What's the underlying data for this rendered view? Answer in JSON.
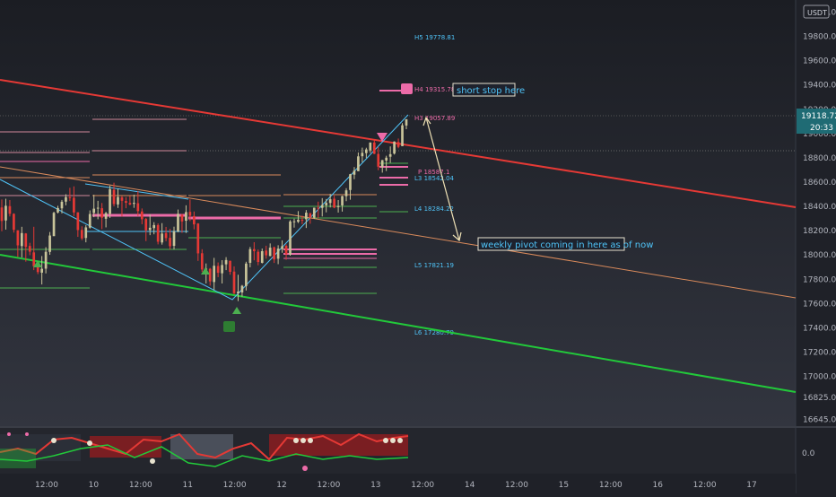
{
  "chart_data": {
    "type": "candlestick",
    "symbol_currency": "USDT",
    "last_price": "19118.72",
    "countdown": "20:33",
    "y_ticks": [
      "20000.00",
      "19800.00",
      "19600.00",
      "19400.00",
      "19200.00",
      "19000.00",
      "18800.00",
      "18600.00",
      "18400.00",
      "18200.00",
      "18000.00",
      "17800.00",
      "17600.00",
      "17400.00",
      "17200.00",
      "17000.00",
      "16825.00",
      "16645.00"
    ],
    "y_range": [
      16590,
      20100
    ],
    "x_ticks": [
      "12:00",
      "10",
      "12:00",
      "11",
      "12:00",
      "12",
      "12:00",
      "13",
      "12:00",
      "14",
      "12:00",
      "15",
      "12:00",
      "16",
      "12:00",
      "17"
    ],
    "pivot_levels": [
      {
        "label": "H5",
        "value": 19778.81,
        "text": "H5 19778.81",
        "color": "#4fc3f7"
      },
      {
        "label": "H4",
        "value": 19315.78,
        "text": "H4 19315.78",
        "color": "#ec6ba8"
      },
      {
        "label": "H3",
        "value": 19057.89,
        "text": "H3 19057.89",
        "color": "#ec6ba8"
      },
      {
        "label": "P",
        "value": 18587.1,
        "text": "P 18587.1",
        "color": "#ec6ba8"
      },
      {
        "label": "L3",
        "value": 18542.04,
        "text": "L3 18542.04",
        "color": "#4fc3f7"
      },
      {
        "label": "L4",
        "value": 18284.22,
        "text": "L4 18284.22",
        "color": "#4fc3f7"
      },
      {
        "label": "L5",
        "value": 17821.19,
        "text": "L5 17821.19",
        "color": "#4fc3f7"
      },
      {
        "label": "L6",
        "value": 17280.79,
        "text": "L6 17280.79",
        "color": "#4fc3f7"
      }
    ],
    "annotations": [
      {
        "id": "short-stop",
        "text": "short stop here"
      },
      {
        "id": "weekly-pivot",
        "text": "weekly pivot coming in here as of now"
      }
    ],
    "oscillator": {
      "level_label": "0.0"
    },
    "colors": {
      "bull": "#c9c49a",
      "bear": "#e53935",
      "trend_red": "#e53935",
      "trend_green": "#22c93a",
      "trend_orange": "#d98a5b",
      "trend_cyan": "#4fc3f7",
      "pivot_pink": "#ec6ba8",
      "pivot_green": "#4caf50",
      "arrow": "#f0e2b6",
      "bg_top": "#1b1d23",
      "bg_bottom": "#32353f",
      "price_label": "#1f6b74"
    },
    "candles": [
      [
        18391,
        18457,
        18195,
        18280
      ],
      [
        18284,
        18463,
        18209,
        18405
      ],
      [
        18402,
        18452,
        18317,
        18339
      ],
      [
        18339,
        18343,
        18184,
        18207
      ],
      [
        18203,
        18203,
        17984,
        18079
      ],
      [
        18073,
        18232,
        17979,
        18180
      ],
      [
        18177,
        18180,
        17945,
        18067
      ],
      [
        18074,
        18100,
        17998,
        18027
      ],
      [
        18021,
        18232,
        17875,
        17907
      ],
      [
        17903,
        17946,
        17842,
        17859
      ],
      [
        17854,
        17991,
        17757,
        17886
      ],
      [
        17887,
        18064,
        17848,
        18026
      ],
      [
        18025,
        18189,
        18001,
        18160
      ],
      [
        18155,
        18356,
        18155,
        18347
      ],
      [
        18350,
        18405,
        18342,
        18386
      ],
      [
        18384,
        18453,
        18342,
        18438
      ],
      [
        18439,
        18500,
        18409,
        18476
      ],
      [
        18476,
        18553,
        18444,
        18471
      ],
      [
        18471,
        18565,
        18320,
        18350
      ],
      [
        18351,
        18352,
        18149,
        18205
      ],
      [
        18206,
        18236,
        18122,
        18136
      ],
      [
        18140,
        18246,
        18104,
        18227
      ],
      [
        18225,
        18367,
        18217,
        18337
      ],
      [
        18346,
        18496,
        18311,
        18381
      ],
      [
        18387,
        18446,
        18294,
        18389
      ],
      [
        18385,
        18428,
        18213,
        18307
      ],
      [
        18298,
        18355,
        18227,
        18345
      ],
      [
        18339,
        18570,
        18305,
        18542
      ],
      [
        18537,
        18595,
        18400,
        18419
      ],
      [
        18416,
        18545,
        18387,
        18477
      ],
      [
        18474,
        18485,
        18317,
        18446
      ],
      [
        18444,
        18476,
        18385,
        18430
      ],
      [
        18429,
        18485,
        18409,
        18415
      ],
      [
        18421,
        18497,
        18388,
        18429
      ],
      [
        18426,
        18526,
        18320,
        18361
      ],
      [
        18358,
        18383,
        18253,
        18294
      ],
      [
        18296,
        18305,
        18114,
        18202
      ],
      [
        18205,
        18335,
        18163,
        18224
      ],
      [
        18221,
        18270,
        18170,
        18246
      ],
      [
        18246,
        18260,
        18087,
        18109
      ],
      [
        18103,
        18262,
        18085,
        18176
      ],
      [
        18180,
        18231,
        18113,
        18139
      ],
      [
        18141,
        18215,
        18044,
        18072
      ],
      [
        18075,
        18233,
        18045,
        18195
      ],
      [
        18194,
        18374,
        18187,
        18339
      ],
      [
        18331,
        18338,
        18182,
        18276
      ],
      [
        18282,
        18409,
        18181,
        18353
      ],
      [
        18355,
        18457,
        18279,
        18323
      ],
      [
        18320,
        18358,
        18211,
        18252
      ],
      [
        18259,
        18262,
        17951,
        18013
      ],
      [
        18014,
        18047,
        17860,
        17880
      ],
      [
        17883,
        17930,
        17765,
        17887
      ],
      [
        17886,
        17893,
        17747,
        17782
      ],
      [
        17777,
        17976,
        17712,
        17911
      ],
      [
        17909,
        17938,
        17817,
        17853
      ],
      [
        17849,
        17957,
        17765,
        17917
      ],
      [
        17923,
        17982,
        17875,
        17958
      ],
      [
        17952,
        17953,
        17837,
        17861
      ],
      [
        17863,
        17906,
        17676,
        17685
      ],
      [
        17684,
        17837,
        17620,
        17698
      ],
      [
        17691,
        17753,
        17656,
        17746
      ],
      [
        17744,
        17944,
        17707,
        17929
      ],
      [
        17935,
        18066,
        17898,
        18048
      ],
      [
        18048,
        18105,
        17956,
        18031
      ],
      [
        18026,
        18045,
        17915,
        17942
      ],
      [
        17935,
        18053,
        17930,
        18031
      ],
      [
        18036,
        18076,
        17969,
        17997
      ],
      [
        17991,
        18095,
        17989,
        18060
      ],
      [
        18063,
        18069,
        17934,
        17963
      ],
      [
        17969,
        18080,
        17924,
        18052
      ],
      [
        18048,
        18120,
        18018,
        18072
      ],
      [
        18075,
        18087,
        17960,
        18007
      ],
      [
        18002,
        18287,
        17994,
        18276
      ],
      [
        18274,
        18299,
        18225,
        18277
      ],
      [
        18273,
        18361,
        18263,
        18290
      ],
      [
        18290,
        18323,
        18254,
        18285
      ],
      [
        18294,
        18370,
        18222,
        18348
      ],
      [
        18341,
        18350,
        18257,
        18309
      ],
      [
        18307,
        18390,
        18298,
        18389
      ],
      [
        18389,
        18439,
        18301,
        18385
      ],
      [
        18388,
        18468,
        18317,
        18411
      ],
      [
        18409,
        18461,
        18351,
        18429
      ],
      [
        18428,
        18503,
        18391,
        18459
      ],
      [
        18463,
        18488,
        18385,
        18390
      ],
      [
        18394,
        18452,
        18349,
        18403
      ],
      [
        18408,
        18488,
        18357,
        18485
      ],
      [
        18484,
        18550,
        18443,
        18532
      ],
      [
        18535,
        18668,
        18455,
        18665
      ],
      [
        18661,
        18724,
        18624,
        18694
      ],
      [
        18690,
        18844,
        18690,
        18812
      ],
      [
        18813,
        18884,
        18763,
        18841
      ],
      [
        18839,
        18883,
        18798,
        18869
      ],
      [
        18861,
        18927,
        18840,
        18926
      ],
      [
        18926,
        18951,
        18830,
        18833
      ],
      [
        18832,
        18889,
        18698,
        18727
      ],
      [
        18723,
        18783,
        18678,
        18781
      ],
      [
        18777,
        18817,
        18691,
        18801
      ],
      [
        18809,
        18894,
        18759,
        18830
      ],
      [
        18835,
        18936,
        18827,
        18934
      ],
      [
        18930,
        18959,
        18879,
        18890
      ],
      [
        18896,
        19086,
        18896,
        19068
      ],
      [
        19066,
        19118,
        19036,
        19118
      ]
    ]
  }
}
